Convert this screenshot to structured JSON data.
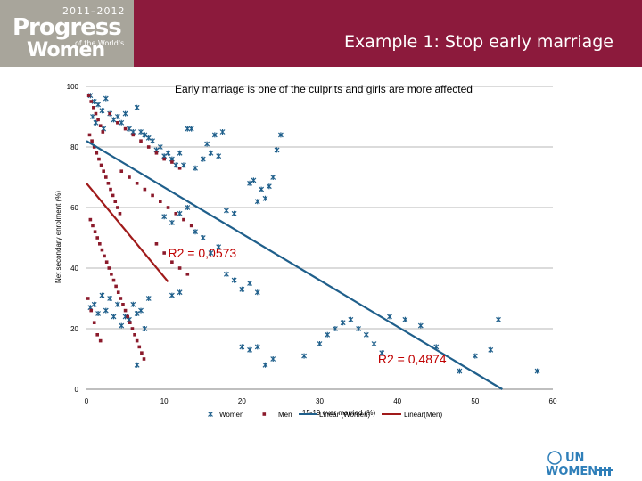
{
  "header": {
    "logo": {
      "years": "2011–2012",
      "line1": "Progress",
      "line2": "Women",
      "small": "of the World's"
    },
    "title": "Example 1: Stop early marriage"
  },
  "footer": {
    "logo_line1": "UN",
    "logo_line2": "WOMEN"
  },
  "colors": {
    "banner": "#8c1a3c",
    "women": "#1f5f8b",
    "men": "#8b1a2b",
    "women_trend": "#1f5f8b",
    "men_trend": "#a01a1a",
    "r2_women": "#c00000",
    "r2_men": "#c00000"
  },
  "chart_data": {
    "type": "scatter",
    "title": "Early marriage is one of the culprits and girls are more affected",
    "xlabel": "15-19 ever married (%)",
    "ylabel": "Net secondary enrolment (%)",
    "xlim": [
      0,
      60
    ],
    "ylim": [
      0,
      100
    ],
    "xticks": [
      "0",
      "10",
      "20",
      "30",
      "40",
      "50",
      "60"
    ],
    "yticks": [
      "0",
      "20",
      "40",
      "60",
      "80",
      "100"
    ],
    "grid": "horizontal",
    "legend_position": "bottom",
    "series": [
      {
        "name": "Women",
        "marker": "star",
        "points": [
          [
            0.5,
            97
          ],
          [
            1,
            95
          ],
          [
            1.5,
            94
          ],
          [
            2,
            92
          ],
          [
            0.8,
            90
          ],
          [
            2.5,
            96
          ],
          [
            3,
            91
          ],
          [
            3.5,
            89
          ],
          [
            1.2,
            88
          ],
          [
            2.2,
            86
          ],
          [
            4,
            90
          ],
          [
            4.5,
            88
          ],
          [
            5,
            91
          ],
          [
            5.5,
            86
          ],
          [
            6,
            85
          ],
          [
            6.5,
            93
          ],
          [
            7,
            85
          ],
          [
            7.5,
            84
          ],
          [
            8,
            83
          ],
          [
            8.5,
            82
          ],
          [
            9,
            79
          ],
          [
            9.5,
            80
          ],
          [
            10,
            77
          ],
          [
            10.5,
            78
          ],
          [
            11,
            76
          ],
          [
            11.5,
            74
          ],
          [
            12,
            78
          ],
          [
            12.5,
            74
          ],
          [
            13,
            86
          ],
          [
            13.5,
            86
          ],
          [
            14,
            73
          ],
          [
            15,
            76
          ],
          [
            16,
            78
          ],
          [
            17,
            77
          ],
          [
            18,
            59
          ],
          [
            19,
            58
          ],
          [
            15.5,
            81
          ],
          [
            16.5,
            84
          ],
          [
            17.5,
            85
          ],
          [
            21,
            68
          ],
          [
            21.5,
            69
          ],
          [
            22,
            62
          ],
          [
            22.5,
            66
          ],
          [
            23,
            63
          ],
          [
            23.5,
            67
          ],
          [
            24,
            70
          ],
          [
            24.5,
            79
          ],
          [
            25,
            84
          ],
          [
            10,
            57
          ],
          [
            11,
            55
          ],
          [
            12,
            58
          ],
          [
            13,
            60
          ],
          [
            14,
            52
          ],
          [
            15,
            50
          ],
          [
            16,
            45
          ],
          [
            17,
            47
          ],
          [
            18,
            38
          ],
          [
            19,
            36
          ],
          [
            20,
            33
          ],
          [
            21,
            35
          ],
          [
            22,
            32
          ],
          [
            11,
            31
          ],
          [
            12,
            32
          ],
          [
            8,
            30
          ],
          [
            7,
            26
          ],
          [
            6,
            28
          ],
          [
            5,
            24
          ],
          [
            7.5,
            20
          ],
          [
            4,
            28
          ],
          [
            3,
            30
          ],
          [
            2,
            31
          ],
          [
            1,
            28
          ],
          [
            0.5,
            27
          ],
          [
            1.5,
            25
          ],
          [
            2.5,
            26
          ],
          [
            3.5,
            24
          ],
          [
            4.5,
            21
          ],
          [
            5.5,
            23
          ],
          [
            6.5,
            25
          ],
          [
            20,
            14
          ],
          [
            21,
            13
          ],
          [
            22,
            14
          ],
          [
            23,
            8
          ],
          [
            24,
            10
          ],
          [
            28,
            11
          ],
          [
            30,
            15
          ],
          [
            31,
            18
          ],
          [
            32,
            20
          ],
          [
            33,
            22
          ],
          [
            34,
            23
          ],
          [
            35,
            20
          ],
          [
            37,
            15
          ],
          [
            39,
            24
          ],
          [
            41,
            23
          ],
          [
            43,
            21
          ],
          [
            45,
            14
          ],
          [
            48,
            6
          ],
          [
            50,
            11
          ],
          [
            52,
            13
          ],
          [
            53,
            23
          ],
          [
            58,
            6
          ],
          [
            36,
            18
          ],
          [
            38,
            12
          ],
          [
            6.5,
            8
          ]
        ]
      },
      {
        "name": "Men",
        "marker": "square",
        "points": [
          [
            0.3,
            97
          ],
          [
            0.6,
            95
          ],
          [
            0.9,
            93
          ],
          [
            1.2,
            91
          ],
          [
            1.5,
            89
          ],
          [
            1.8,
            87
          ],
          [
            2.1,
            85
          ],
          [
            0.4,
            84
          ],
          [
            0.7,
            82
          ],
          [
            1,
            80
          ],
          [
            1.3,
            78
          ],
          [
            1.6,
            76
          ],
          [
            1.9,
            74
          ],
          [
            2.2,
            72
          ],
          [
            2.5,
            70
          ],
          [
            2.8,
            68
          ],
          [
            3.1,
            66
          ],
          [
            3.4,
            64
          ],
          [
            3.7,
            62
          ],
          [
            4,
            60
          ],
          [
            4.3,
            58
          ],
          [
            0.5,
            56
          ],
          [
            0.8,
            54
          ],
          [
            1.1,
            52
          ],
          [
            1.4,
            50
          ],
          [
            1.7,
            48
          ],
          [
            2,
            46
          ],
          [
            2.3,
            44
          ],
          [
            2.6,
            42
          ],
          [
            2.9,
            40
          ],
          [
            3.2,
            38
          ],
          [
            3.5,
            36
          ],
          [
            3.8,
            34
          ],
          [
            4.1,
            32
          ],
          [
            4.4,
            30
          ],
          [
            4.7,
            28
          ],
          [
            5,
            26
          ],
          [
            5.3,
            24
          ],
          [
            5.6,
            22
          ],
          [
            5.9,
            20
          ],
          [
            6.2,
            18
          ],
          [
            6.5,
            16
          ],
          [
            6.8,
            14
          ],
          [
            7.1,
            12
          ],
          [
            7.4,
            10
          ],
          [
            3,
            91
          ],
          [
            4,
            88
          ],
          [
            5,
            86
          ],
          [
            6,
            84
          ],
          [
            7,
            82
          ],
          [
            8,
            80
          ],
          [
            9,
            78
          ],
          [
            10,
            76
          ],
          [
            11,
            75
          ],
          [
            12,
            73
          ],
          [
            4.5,
            72
          ],
          [
            5.5,
            70
          ],
          [
            6.5,
            68
          ],
          [
            7.5,
            66
          ],
          [
            8.5,
            64
          ],
          [
            9.5,
            62
          ],
          [
            10.5,
            60
          ],
          [
            11.5,
            58
          ],
          [
            12.5,
            56
          ],
          [
            13.5,
            54
          ],
          [
            9,
            48
          ],
          [
            10,
            45
          ],
          [
            11,
            42
          ],
          [
            12,
            40
          ],
          [
            13,
            38
          ],
          [
            0.2,
            30
          ],
          [
            0.6,
            26
          ],
          [
            1,
            22
          ],
          [
            1.4,
            18
          ],
          [
            1.8,
            16
          ]
        ]
      }
    ],
    "trendlines": [
      {
        "name": "Linear (Women)",
        "x": [
          0,
          53.5
        ],
        "y": [
          82,
          0
        ],
        "r2_label": "R2 = 0,4874"
      },
      {
        "name": "Linear(Men)",
        "x": [
          0,
          10.5
        ],
        "y": [
          68,
          35.5
        ],
        "r2_label": "R2 = 0,0573"
      }
    ],
    "legend": [
      "Women",
      "Men",
      "Linear (Women)",
      "Linear(Men)"
    ]
  }
}
